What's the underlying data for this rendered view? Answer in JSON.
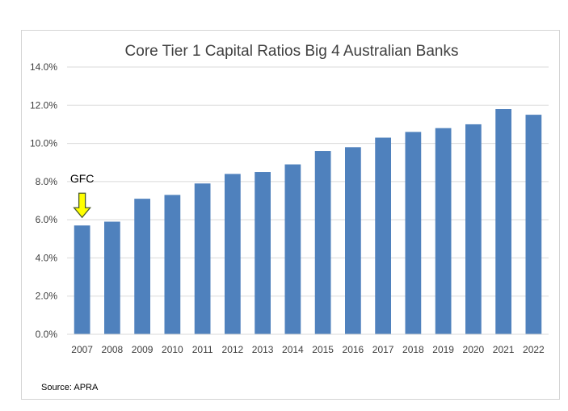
{
  "chart_data": {
    "type": "bar",
    "title": "Core Tier 1 Capital Ratios Big 4 Australian Banks",
    "xlabel": "",
    "ylabel": "",
    "categories": [
      "2007",
      "2008",
      "2009",
      "2010",
      "2011",
      "2012",
      "2013",
      "2014",
      "2015",
      "2016",
      "2017",
      "2018",
      "2019",
      "2020",
      "2021",
      "2022"
    ],
    "values": [
      5.7,
      5.9,
      7.1,
      7.3,
      7.9,
      8.4,
      8.5,
      8.9,
      9.6,
      9.8,
      10.3,
      10.6,
      10.8,
      11.0,
      11.8,
      11.5
    ],
    "value_format": "percent_1dp",
    "ylim": [
      0,
      14
    ],
    "y_ticks": [
      0,
      2,
      4,
      6,
      8,
      10,
      12,
      14
    ],
    "y_tick_labels": [
      "0.0%",
      "2.0%",
      "4.0%",
      "6.0%",
      "8.0%",
      "10.0%",
      "12.0%",
      "14.0%"
    ],
    "grid": true,
    "legend": "none",
    "bar_color": "#4f81bd",
    "annotation": {
      "text": "GFC",
      "category": "2007",
      "arrow_color": "#ffff00",
      "arrow_outline": "#4a5a2a"
    },
    "source": "Source: APRA"
  }
}
